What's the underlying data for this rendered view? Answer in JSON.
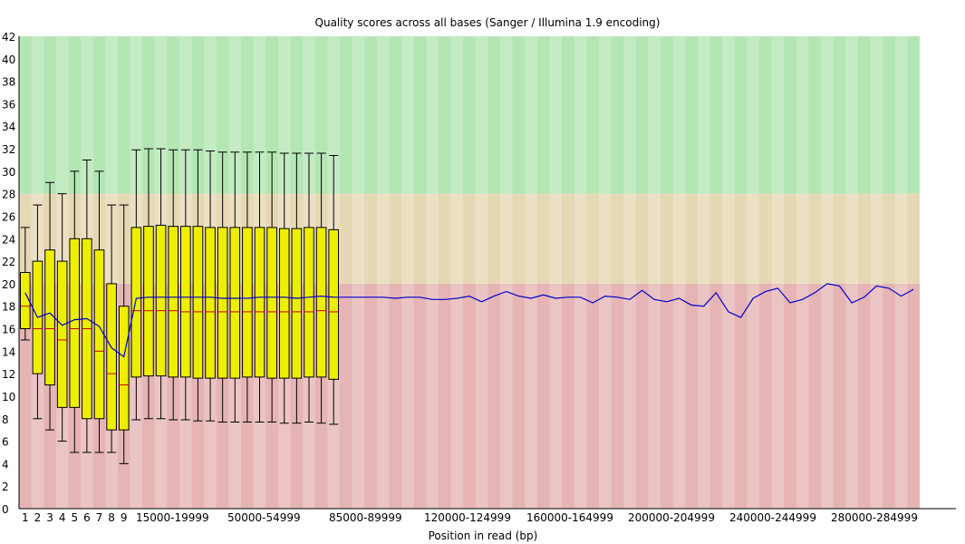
{
  "chart_data": {
    "type": "box",
    "title": "Quality scores across all bases (Sanger / Illumina 1.9 encoding)",
    "xlabel": "Position in read (bp)",
    "ylabel": "",
    "ylim": [
      0,
      42
    ],
    "yticks": [
      0,
      2,
      4,
      6,
      8,
      10,
      12,
      14,
      16,
      18,
      20,
      22,
      24,
      26,
      28,
      30,
      32,
      34,
      36,
      38,
      40,
      42
    ],
    "zones": [
      {
        "from": 0,
        "to": 20,
        "quality": "poor",
        "color": "#e6b4b4"
      },
      {
        "from": 20,
        "to": 28,
        "quality": "reasonable",
        "color": "#e6d8b4"
      },
      {
        "from": 28,
        "to": 42,
        "quality": "good",
        "color": "#b4e6b4"
      }
    ],
    "x_tick_labels": [
      "1",
      "2",
      "3",
      "4",
      "5",
      "6",
      "7",
      "8",
      "9",
      "15000-19999",
      "50000-54999",
      "85000-89999",
      "120000-124999",
      "160000-164999",
      "200000-204999",
      "240000-244999",
      "280000-284999"
    ],
    "boxes": [
      {
        "x": 1,
        "lw": 15,
        "q1": 16,
        "median": 18,
        "q3": 21,
        "uw": 25
      },
      {
        "x": 2,
        "lw": 8,
        "q1": 12,
        "median": 16,
        "q3": 22,
        "uw": 27
      },
      {
        "x": 3,
        "lw": 7,
        "q1": 11,
        "median": 16,
        "q3": 23,
        "uw": 29
      },
      {
        "x": 4,
        "lw": 6,
        "q1": 9,
        "median": 15,
        "q3": 22,
        "uw": 28
      },
      {
        "x": 5,
        "lw": 5,
        "q1": 9,
        "median": 16,
        "q3": 24,
        "uw": 30
      },
      {
        "x": 6,
        "lw": 5,
        "q1": 8,
        "median": 16,
        "q3": 24,
        "uw": 31
      },
      {
        "x": 7,
        "lw": 5,
        "q1": 8,
        "median": 14,
        "q3": 23,
        "uw": 30
      },
      {
        "x": 8,
        "lw": 5,
        "q1": 7,
        "median": 12,
        "q3": 20,
        "uw": 27
      },
      {
        "x": 9,
        "lw": 4,
        "q1": 7,
        "median": 11,
        "q3": 18,
        "uw": 27
      },
      {
        "x": 10,
        "lw": 7.9,
        "q1": 11.7,
        "median": 17.6,
        "q3": 25.0,
        "uw": 31.9
      },
      {
        "x": 11,
        "lw": 8.0,
        "q1": 11.8,
        "median": 17.6,
        "q3": 25.1,
        "uw": 32.0
      },
      {
        "x": 12,
        "lw": 8.0,
        "q1": 11.8,
        "median": 17.6,
        "q3": 25.2,
        "uw": 32.0
      },
      {
        "x": 13,
        "lw": 7.9,
        "q1": 11.7,
        "median": 17.6,
        "q3": 25.1,
        "uw": 31.9
      },
      {
        "x": 14,
        "lw": 7.9,
        "q1": 11.7,
        "median": 17.5,
        "q3": 25.1,
        "uw": 31.9
      },
      {
        "x": 15,
        "lw": 7.8,
        "q1": 11.6,
        "median": 17.5,
        "q3": 25.1,
        "uw": 31.9
      },
      {
        "x": 16,
        "lw": 7.8,
        "q1": 11.6,
        "median": 17.5,
        "q3": 25.0,
        "uw": 31.8
      },
      {
        "x": 17,
        "lw": 7.7,
        "q1": 11.6,
        "median": 17.5,
        "q3": 25.0,
        "uw": 31.7
      },
      {
        "x": 18,
        "lw": 7.7,
        "q1": 11.6,
        "median": 17.5,
        "q3": 25.0,
        "uw": 31.7
      },
      {
        "x": 19,
        "lw": 7.7,
        "q1": 11.7,
        "median": 17.5,
        "q3": 25.0,
        "uw": 31.7
      },
      {
        "x": 20,
        "lw": 7.7,
        "q1": 11.7,
        "median": 17.5,
        "q3": 25.0,
        "uw": 31.7
      },
      {
        "x": 21,
        "lw": 7.7,
        "q1": 11.6,
        "median": 17.5,
        "q3": 25.0,
        "uw": 31.7
      },
      {
        "x": 22,
        "lw": 7.6,
        "q1": 11.6,
        "median": 17.5,
        "q3": 24.9,
        "uw": 31.6
      },
      {
        "x": 23,
        "lw": 7.6,
        "q1": 11.6,
        "median": 17.5,
        "q3": 24.9,
        "uw": 31.6
      },
      {
        "x": 24,
        "lw": 7.7,
        "q1": 11.7,
        "median": 17.5,
        "q3": 25.0,
        "uw": 31.6
      },
      {
        "x": 25,
        "lw": 7.6,
        "q1": 11.7,
        "median": 17.6,
        "q3": 25.0,
        "uw": 31.6
      },
      {
        "x": 26,
        "lw": 7.5,
        "q1": 11.5,
        "median": 17.5,
        "q3": 24.8,
        "uw": 31.4
      }
    ],
    "mean_line": {
      "color": "#0000cc",
      "values": [
        19.2,
        17.0,
        17.4,
        16.3,
        16.8,
        16.9,
        16.2,
        14.3,
        13.5,
        18.7,
        18.8,
        18.8,
        18.8,
        18.8,
        18.8,
        18.8,
        18.7,
        18.7,
        18.7,
        18.8,
        18.8,
        18.8,
        18.7,
        18.8,
        18.9,
        18.8,
        18.8,
        18.8,
        18.8,
        18.8,
        18.7,
        18.8,
        18.8,
        18.6,
        18.6,
        18.7,
        18.9,
        18.4,
        18.9,
        19.3,
        18.9,
        18.7,
        19.0,
        18.7,
        18.8,
        18.8,
        18.3,
        18.9,
        18.8,
        18.6,
        19.4,
        18.6,
        18.4,
        18.7,
        18.1,
        18.0,
        19.2,
        17.5,
        17.0,
        18.7,
        19.3,
        19.6,
        18.3,
        18.6,
        19.2,
        20.0,
        19.8,
        18.3,
        18.8,
        19.8,
        19.6,
        18.9,
        19.5
      ]
    },
    "box_color": "#eeee00",
    "median_color": "#cc0000",
    "grid": false,
    "legend": "none"
  }
}
